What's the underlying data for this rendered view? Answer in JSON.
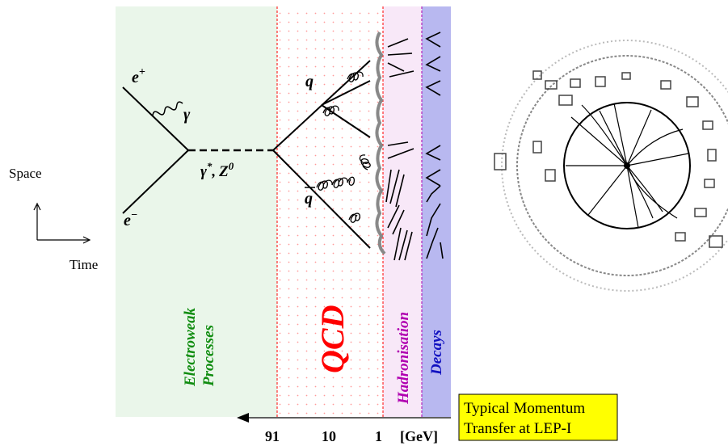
{
  "particles": {
    "positron": "e",
    "positron_sup": "+",
    "electron": "e",
    "electron_sup": "−",
    "photon": "γ",
    "quark": "q",
    "antiquark": "q",
    "boson_gamma": "γ",
    "boson_gamma_sup": "*",
    "boson_sep": ",",
    "boson_z": "Z",
    "boson_z_sup": "0"
  },
  "axes": {
    "space": "Space",
    "time": "Time"
  },
  "regions": {
    "electroweak": [
      "Electroweak",
      "Processes"
    ],
    "qcd": "QCD",
    "hadronisation": "Hadronisation",
    "decays": "Decays"
  },
  "scale": {
    "ticks": [
      "91",
      "10",
      "1"
    ],
    "unit": "[GeV]",
    "box_lines": [
      "Typical Momentum",
      "Transfer at LEP-I"
    ]
  },
  "colors": {
    "electroweak_bg": "#eaf6ea",
    "hadronisation_bg": "#f8e8f8",
    "decays_bg": "#b8b8f0",
    "dots": "#ff9a9a",
    "qcd_label": "#ff0000",
    "electroweak_label": "#108c10",
    "hadronisation_label": "#b000b0",
    "decays_label": "#1010c0",
    "box_bg": "#ffff00",
    "divider": "#ff0000"
  }
}
